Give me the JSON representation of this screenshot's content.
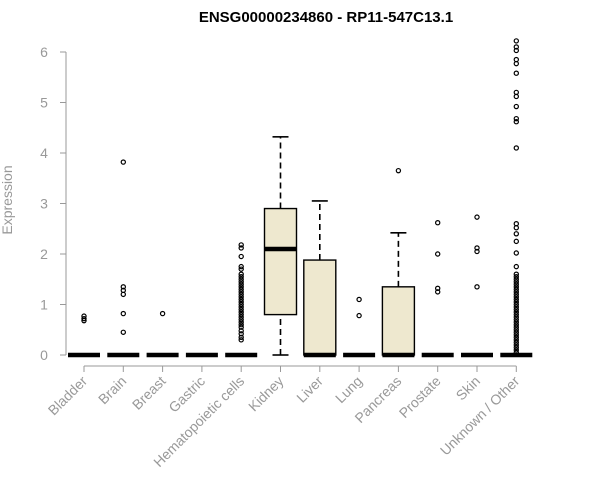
{
  "chart_data": {
    "type": "boxplot",
    "title": "ENSG00000234860 - RP11-547C13.1",
    "ylabel": "Expression",
    "ylim": [
      0,
      6.2
    ],
    "yticks": [
      0,
      1,
      2,
      3,
      4,
      5,
      6
    ],
    "box_color": "#EEE8CF",
    "categories": [
      "Bladder",
      "Brain",
      "Breast",
      "Gastric",
      "Hematopoietic cells",
      "Kidney",
      "Liver",
      "Lung",
      "Pancreas",
      "Prostate",
      "Skin",
      "Unknown / Other"
    ],
    "boxes": [
      {
        "category": "Bladder",
        "min": 0,
        "q1": 0,
        "median": 0,
        "q3": 0,
        "max": 0,
        "outliers": [
          0.68,
          0.72,
          0.77
        ]
      },
      {
        "category": "Brain",
        "min": 0,
        "q1": 0,
        "median": 0,
        "q3": 0,
        "max": 0,
        "outliers": [
          0.45,
          0.82,
          1.2,
          1.28,
          1.35,
          3.82
        ]
      },
      {
        "category": "Breast",
        "min": 0,
        "q1": 0,
        "median": 0,
        "q3": 0,
        "max": 0,
        "outliers": [
          0.82
        ]
      },
      {
        "category": "Gastric",
        "min": 0,
        "q1": 0,
        "median": 0,
        "q3": 0,
        "max": 0,
        "outliers": []
      },
      {
        "category": "Hematopoietic cells",
        "min": 0,
        "q1": 0,
        "median": 0,
        "q3": 0,
        "max": 0,
        "outliers": [
          0.3,
          0.35,
          0.42,
          0.48,
          0.55,
          0.6,
          0.65,
          0.7,
          0.75,
          0.8,
          0.85,
          0.9,
          0.95,
          1.0,
          1.05,
          1.1,
          1.15,
          1.2,
          1.25,
          1.3,
          1.35,
          1.4,
          1.45,
          1.5,
          1.55,
          1.6,
          1.7,
          1.75,
          1.95,
          2.12,
          2.18
        ]
      },
      {
        "category": "Kidney",
        "min": 0,
        "q1": 0.8,
        "median": 2.1,
        "q3": 2.9,
        "max": 4.32,
        "outliers": []
      },
      {
        "category": "Liver",
        "min": 0,
        "q1": 0,
        "median": 0,
        "q3": 1.88,
        "max": 3.05,
        "outliers": []
      },
      {
        "category": "Lung",
        "min": 0,
        "q1": 0,
        "median": 0,
        "q3": 0,
        "max": 0,
        "outliers": [
          0.78,
          1.1
        ]
      },
      {
        "category": "Pancreas",
        "min": 0,
        "q1": 0,
        "median": 0,
        "q3": 1.35,
        "max": 2.42,
        "outliers": [
          3.65
        ]
      },
      {
        "category": "Prostate",
        "min": 0,
        "q1": 0,
        "median": 0,
        "q3": 0,
        "max": 0,
        "outliers": [
          1.25,
          1.32,
          2.0,
          2.62
        ]
      },
      {
        "category": "Skin",
        "min": 0,
        "q1": 0,
        "median": 0,
        "q3": 0,
        "max": 0,
        "outliers": [
          1.35,
          2.05,
          2.12,
          2.73
        ]
      },
      {
        "category": "Unknown / Other",
        "min": 0,
        "q1": 0,
        "median": 0,
        "q3": 0,
        "max": 0,
        "outliers": [
          0.05,
          0.1,
          0.15,
          0.2,
          0.25,
          0.3,
          0.35,
          0.4,
          0.45,
          0.5,
          0.55,
          0.6,
          0.65,
          0.7,
          0.75,
          0.8,
          0.85,
          0.9,
          0.95,
          1.0,
          1.05,
          1.1,
          1.15,
          1.2,
          1.25,
          1.3,
          1.35,
          1.4,
          1.45,
          1.5,
          1.55,
          1.6,
          1.75,
          2.02,
          2.25,
          2.4,
          2.52,
          2.6,
          4.1,
          4.62,
          4.68,
          4.92,
          5.12,
          5.2,
          5.58,
          5.77,
          5.85,
          6.03,
          6.1,
          6.22
        ]
      }
    ]
  }
}
